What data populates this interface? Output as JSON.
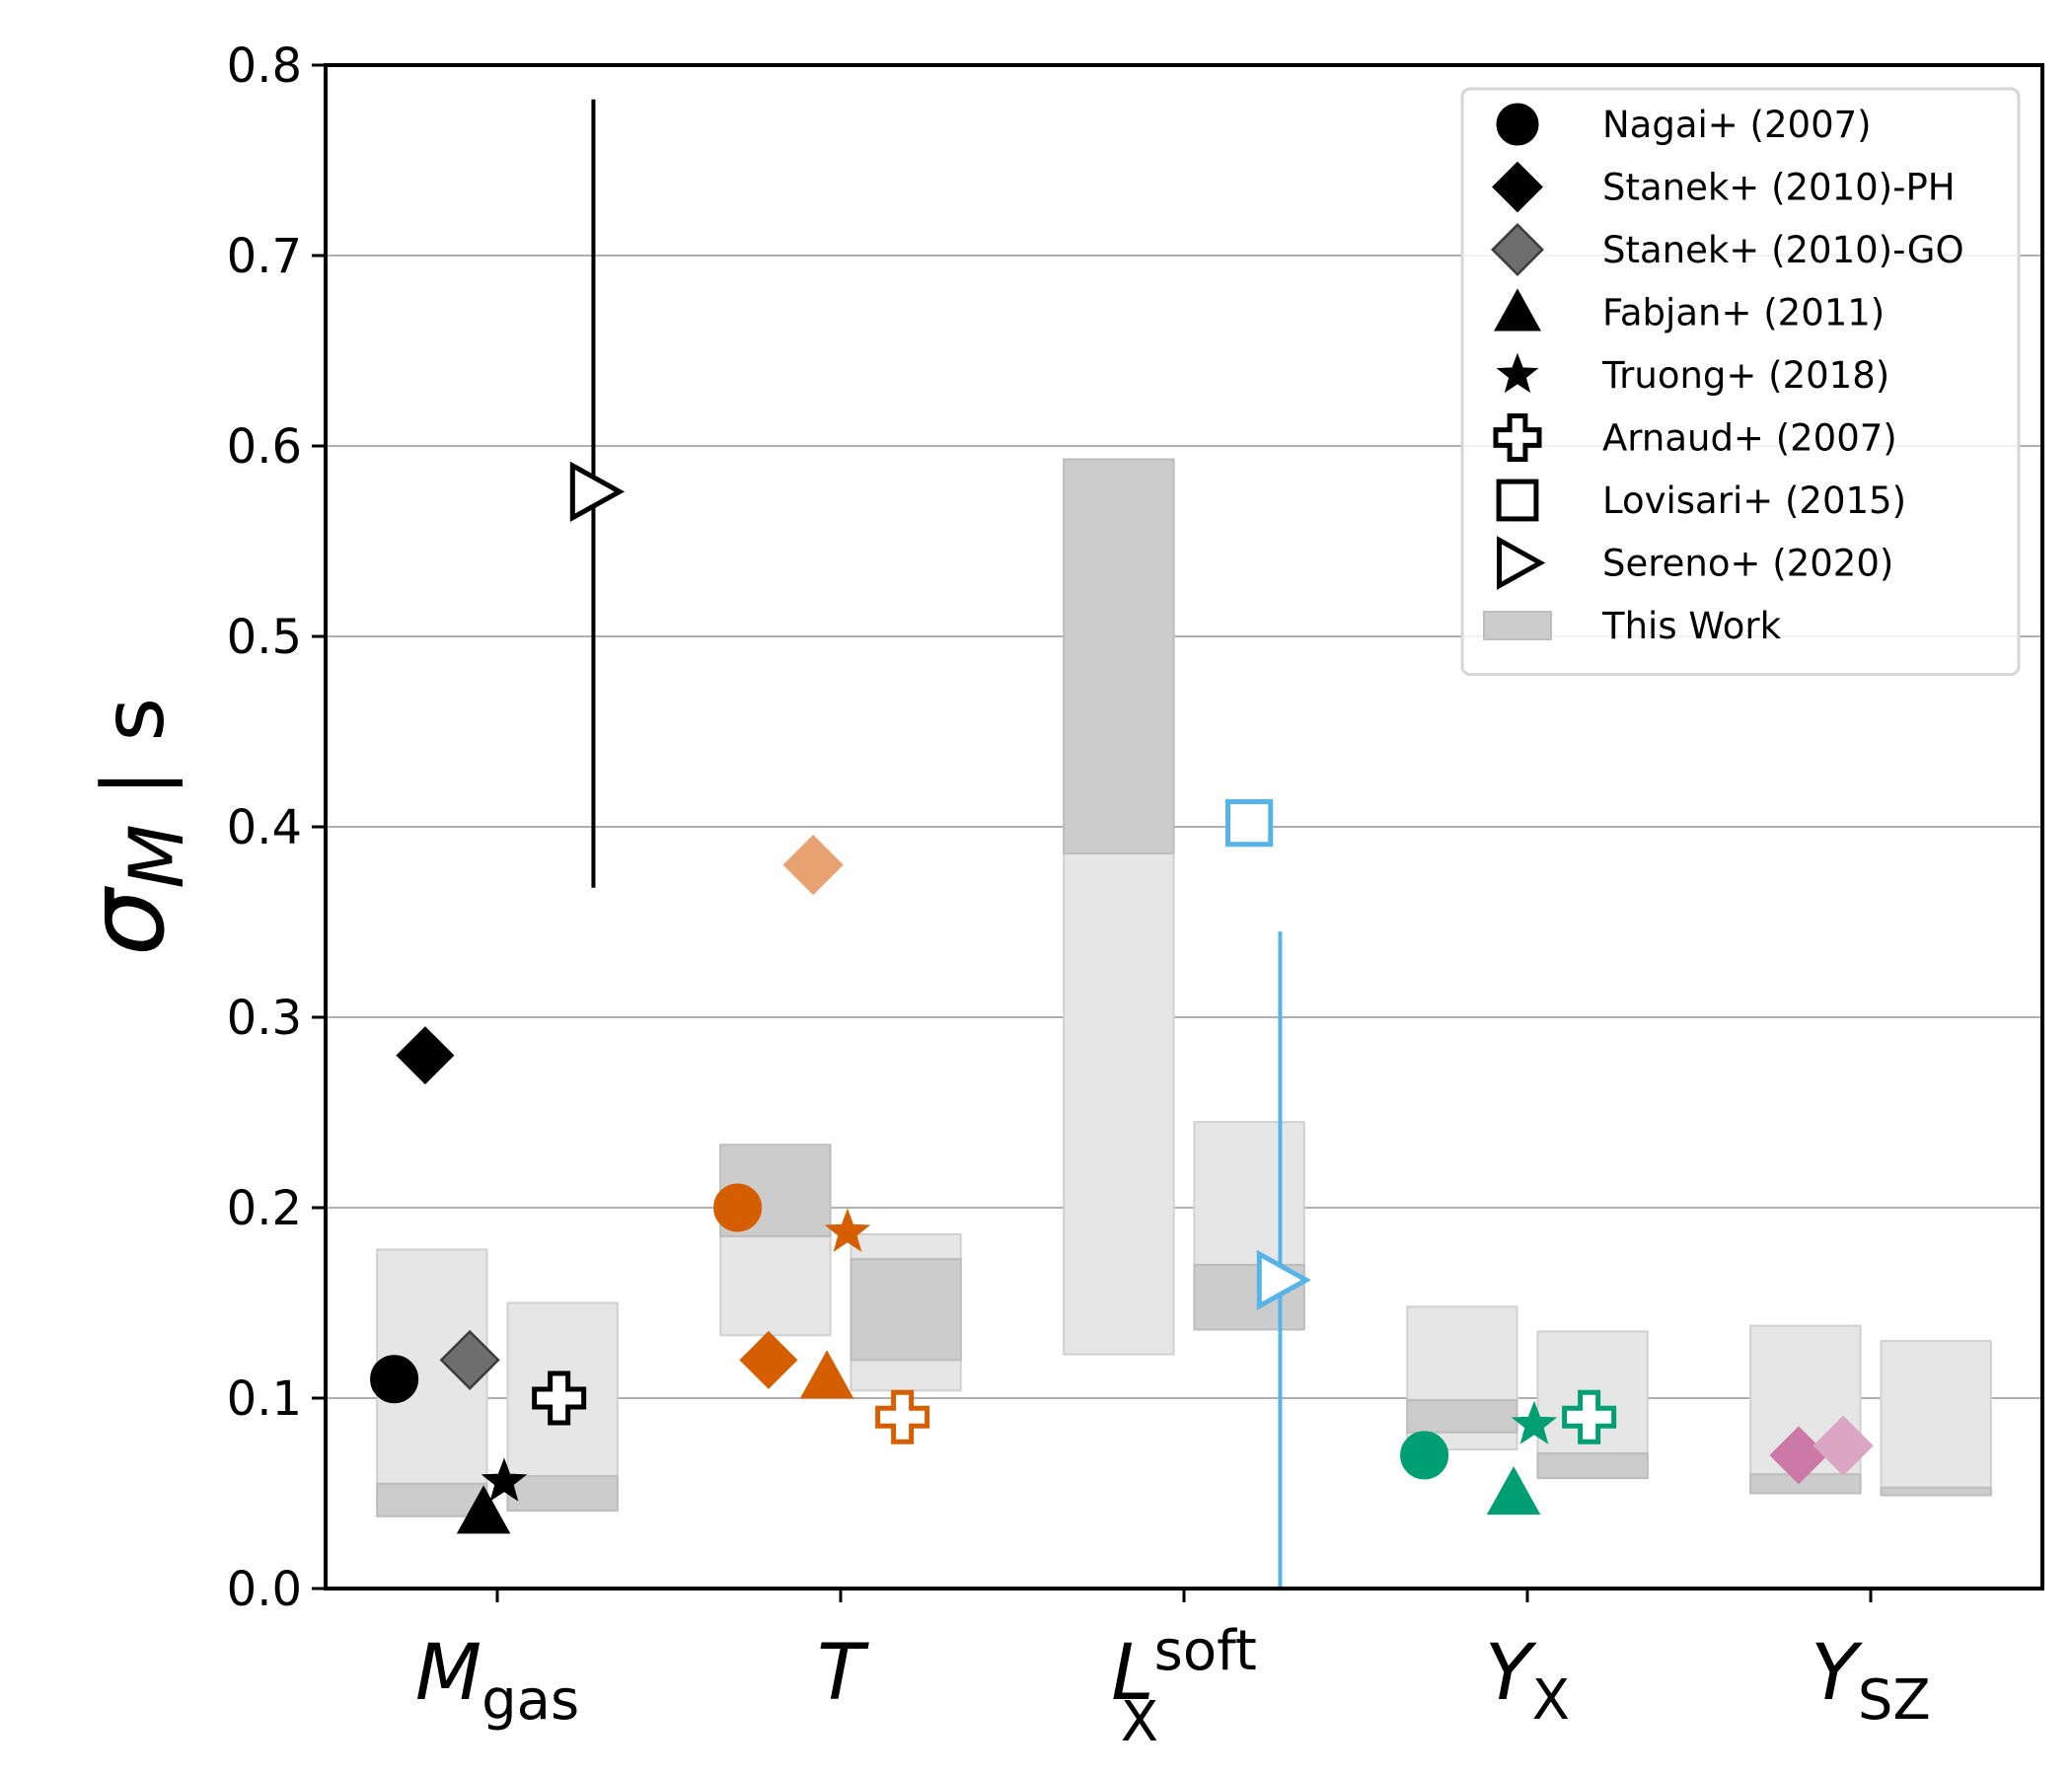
{
  "chart_data": {
    "type": "scatter",
    "title": "",
    "ylabel": "σ_M | s",
    "ylabel_parts": {
      "sigma": "σ",
      "sub": "M",
      "rest": " | s"
    },
    "ylim": [
      0,
      0.8
    ],
    "yticks": [
      0.0,
      0.1,
      0.2,
      0.3,
      0.4,
      0.5,
      0.6,
      0.7,
      0.8
    ],
    "ytick_labels": [
      "0.0",
      "0.1",
      "0.2",
      "0.3",
      "0.4",
      "0.5",
      "0.6",
      "0.7",
      "0.8"
    ],
    "grid": "horizontal",
    "legend_position": "top-right",
    "categories": [
      {
        "main": "M",
        "sub": "gas",
        "sup": ""
      },
      {
        "main": "T",
        "sub": "",
        "sup": ""
      },
      {
        "main": "L",
        "sub": "X",
        "sup": "soft"
      },
      {
        "main": "Y",
        "sub": "X",
        "sup": ""
      },
      {
        "main": "Y",
        "sub": "SZ",
        "sup": ""
      }
    ],
    "colors": {
      "black": "#000000",
      "gray": "#6e6e6e",
      "orange": "#d55e00",
      "orange_light": "#e8a272",
      "blue": "#56b4e9",
      "green": "#009e73",
      "pink": "#cc79a7",
      "pink_light": "#dba6c4",
      "box_light": "#e6e6e6",
      "box_dark": "#cccccc",
      "grid": "#b0b0b0"
    },
    "this_work": [
      {
        "category": 0,
        "offset": -0.19,
        "outer": [
          0.038,
          0.178
        ],
        "inner": [
          0.038,
          0.055
        ]
      },
      {
        "category": 0,
        "offset": 0.19,
        "outer": [
          0.041,
          0.15
        ],
        "inner": [
          0.041,
          0.059
        ]
      },
      {
        "category": 1,
        "offset": -0.19,
        "outer": [
          0.133,
          0.233
        ],
        "inner": [
          0.185,
          0.233
        ]
      },
      {
        "category": 1,
        "offset": 0.19,
        "outer": [
          0.104,
          0.186
        ],
        "inner": [
          0.12,
          0.173
        ]
      },
      {
        "category": 2,
        "offset": -0.19,
        "outer": [
          0.123,
          0.593
        ],
        "inner": [
          0.386,
          0.593
        ]
      },
      {
        "category": 2,
        "offset": 0.19,
        "outer": [
          0.136,
          0.245
        ],
        "inner": [
          0.136,
          0.17
        ]
      },
      {
        "category": 3,
        "offset": -0.19,
        "outer": [
          0.073,
          0.148
        ],
        "inner": [
          0.082,
          0.099
        ]
      },
      {
        "category": 3,
        "offset": 0.19,
        "outer": [
          0.058,
          0.135
        ],
        "inner": [
          0.058,
          0.071
        ]
      },
      {
        "category": 4,
        "offset": -0.19,
        "outer": [
          0.05,
          0.138
        ],
        "inner": [
          0.05,
          0.06
        ]
      },
      {
        "category": 4,
        "offset": 0.19,
        "outer": [
          0.049,
          0.13
        ],
        "inner": [
          0.049,
          0.053
        ]
      }
    ],
    "errorbars": [
      {
        "category": 0,
        "offset": 0.28,
        "range": [
          0.368,
          0.782
        ],
        "color": "black"
      },
      {
        "category": 2,
        "offset": 0.28,
        "range": [
          0.0,
          0.345
        ],
        "color": "blue"
      }
    ],
    "points": [
      {
        "category": 0,
        "offset": -0.3,
        "y": 0.11,
        "marker": "circle",
        "color": "black"
      },
      {
        "category": 0,
        "offset": -0.21,
        "y": 0.28,
        "marker": "diamond",
        "color": "black"
      },
      {
        "category": 0,
        "offset": -0.08,
        "y": 0.12,
        "marker": "diamond",
        "color": "gray"
      },
      {
        "category": 0,
        "offset": -0.04,
        "y": 0.04,
        "marker": "triangle",
        "color": "black"
      },
      {
        "category": 0,
        "offset": 0.02,
        "y": 0.056,
        "marker": "star",
        "color": "black"
      },
      {
        "category": 0,
        "offset": 0.18,
        "y": 0.1,
        "marker": "plus",
        "color": "black"
      },
      {
        "category": 0,
        "offset": 0.28,
        "y": 0.576,
        "marker": "triangle-right",
        "color": "black"
      },
      {
        "category": 1,
        "offset": -0.3,
        "y": 0.2,
        "marker": "circle",
        "color": "orange"
      },
      {
        "category": 1,
        "offset": -0.21,
        "y": 0.12,
        "marker": "diamond",
        "color": "orange"
      },
      {
        "category": 1,
        "offset": -0.08,
        "y": 0.38,
        "marker": "diamond",
        "color": "orange_light"
      },
      {
        "category": 1,
        "offset": -0.04,
        "y": 0.111,
        "marker": "triangle",
        "color": "orange"
      },
      {
        "category": 1,
        "offset": 0.02,
        "y": 0.187,
        "marker": "star",
        "color": "orange"
      },
      {
        "category": 1,
        "offset": 0.18,
        "y": 0.09,
        "marker": "plus",
        "color": "orange"
      },
      {
        "category": 2,
        "offset": 0.19,
        "y": 0.402,
        "marker": "square",
        "color": "blue"
      },
      {
        "category": 2,
        "offset": 0.28,
        "y": 0.162,
        "marker": "triangle-right",
        "color": "blue"
      },
      {
        "category": 3,
        "offset": -0.3,
        "y": 0.07,
        "marker": "circle",
        "color": "green"
      },
      {
        "category": 3,
        "offset": -0.04,
        "y": 0.05,
        "marker": "triangle",
        "color": "green"
      },
      {
        "category": 3,
        "offset": 0.02,
        "y": 0.086,
        "marker": "star",
        "color": "green"
      },
      {
        "category": 3,
        "offset": 0.18,
        "y": 0.09,
        "marker": "plus",
        "color": "green"
      },
      {
        "category": 4,
        "offset": -0.21,
        "y": 0.07,
        "marker": "diamond",
        "color": "pink"
      },
      {
        "category": 4,
        "offset": -0.08,
        "y": 0.075,
        "marker": "diamond",
        "color": "pink_light"
      }
    ],
    "legend": [
      {
        "label": "Nagai+ (2007)",
        "marker": "circle",
        "color": "black"
      },
      {
        "label": "Stanek+ (2010)-PH",
        "marker": "diamond",
        "color": "black"
      },
      {
        "label": "Stanek+ (2010)-GO",
        "marker": "diamond",
        "color": "gray"
      },
      {
        "label": "Fabjan+ (2011)",
        "marker": "triangle",
        "color": "black"
      },
      {
        "label": "Truong+ (2018)",
        "marker": "star",
        "color": "black"
      },
      {
        "label": "Arnaud+ (2007)",
        "marker": "plus",
        "color": "black"
      },
      {
        "label": "Lovisari+ (2015)",
        "marker": "square",
        "color": "black"
      },
      {
        "label": "Sereno+ (2020)",
        "marker": "triangle-right",
        "color": "black"
      },
      {
        "label": "This Work",
        "marker": "box",
        "color": "box_dark"
      }
    ]
  }
}
